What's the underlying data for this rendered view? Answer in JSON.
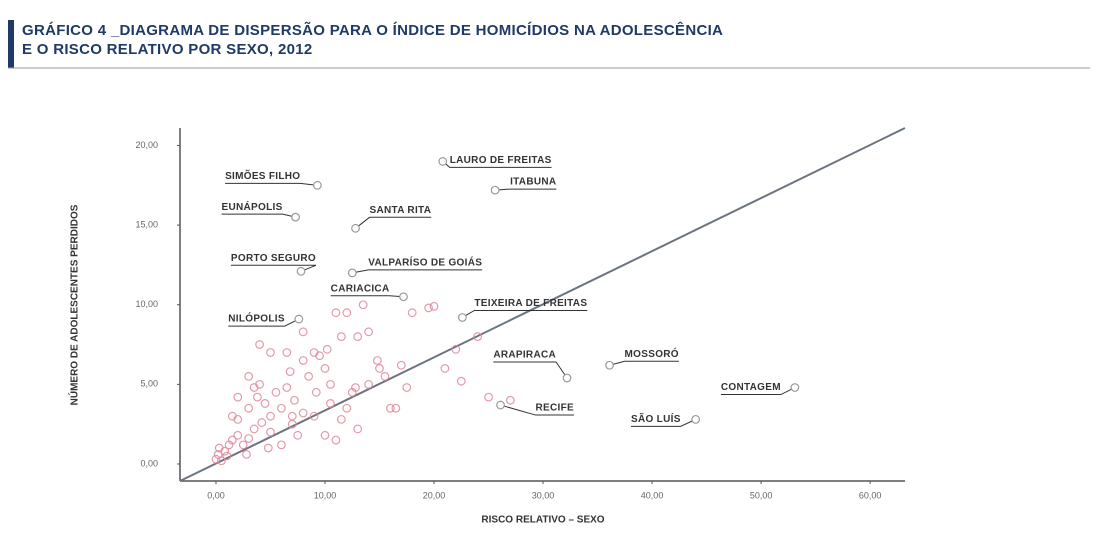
{
  "chart_data": {
    "type": "scatter",
    "title": [
      "GRÁFICO 4 _DIAGRAMA DE DISPERSÃO PARA O ÍNDICE DE HOMICÍDIOS NA ADOLESCÊNCIA",
      "E O RISCO RELATIVO POR SEXO, 2012"
    ],
    "x_label": "RISCO RELATIVO – SEXO",
    "y_label": "NÚMERO DE ADOLESCENTES PERDIDOS",
    "xlim": [
      -3.3,
      63.2
    ],
    "ylim": [
      -1.07,
      21.1
    ],
    "xticks": [
      {
        "value": 0,
        "label": "0,00"
      },
      {
        "value": 10,
        "label": "10,00"
      },
      {
        "value": 20,
        "label": "20,00"
      },
      {
        "value": 30,
        "label": "30,00"
      },
      {
        "value": 40,
        "label": "40,00"
      },
      {
        "value": 50,
        "label": "50,00"
      },
      {
        "value": 60,
        "label": "60,00"
      }
    ],
    "yticks": [
      {
        "value": 0,
        "label": "0,00"
      },
      {
        "value": 5,
        "label": "5,00"
      },
      {
        "value": 10,
        "label": "10,00"
      },
      {
        "value": 15,
        "label": "15,00"
      },
      {
        "value": 20,
        "label": "20,00"
      }
    ],
    "color": "#e0879a",
    "line_color": "#6b7580",
    "reference_line": {
      "x": [
        -3.3,
        63.2
      ],
      "y": [
        -1.07,
        21.1
      ]
    },
    "x": [
      0,
      0.2,
      0.5,
      0.3,
      1,
      1.2,
      0.8,
      1.5,
      2,
      2.5,
      2,
      3,
      3.5,
      3,
      3.8,
      4,
      4.5,
      4.2,
      5,
      5.5,
      5,
      6,
      6.5,
      6,
      7,
      7.2,
      7.5,
      8,
      8.5,
      8,
      9,
      9.5,
      10,
      10.5,
      10.2,
      9,
      10,
      11,
      11.5,
      12,
      12.5,
      13,
      14,
      15,
      15.5,
      16,
      17,
      17.5,
      18,
      19.5,
      20,
      21,
      22,
      22.5,
      24,
      25,
      27,
      4,
      5,
      3,
      2,
      1.5,
      6.5,
      8,
      11,
      11.5,
      12,
      13,
      13.5,
      14,
      7,
      6.8,
      3.5,
      4.8,
      2.8,
      9.2,
      10.5,
      16.5,
      12.8,
      14.8
    ],
    "y": [
      0.3,
      0.6,
      0.2,
      1.0,
      0.5,
      1.2,
      0.8,
      1.5,
      1.8,
      1.2,
      2.8,
      1.6,
      2.2,
      3.5,
      4.2,
      5,
      3.8,
      2.6,
      3,
      4.5,
      2,
      3.5,
      4.8,
      1.2,
      2.5,
      4,
      1.8,
      3.2,
      5.5,
      6.5,
      7,
      6.8,
      6,
      5,
      7.2,
      3,
      1.8,
      1.5,
      2.8,
      3.5,
      4.5,
      2.2,
      5,
      6,
      5.5,
      3.5,
      6.2,
      4.8,
      9.5,
      9.8,
      9.9,
      6,
      7.2,
      5.2,
      8,
      4.2,
      4,
      7.5,
      7,
      5.5,
      4.2,
      3,
      7,
      8.3,
      9.5,
      8,
      9.5,
      8,
      10,
      8.3,
      3,
      5.8,
      4.8,
      1,
      0.6,
      4.5,
      3.8,
      3.5,
      4.8,
      6.5
    ],
    "annotations": [
      {
        "text": "SIMÕES FILHO",
        "x": 9.3,
        "y": 17.5
      },
      {
        "text": "LAURO DE FREITAS",
        "x": 20.8,
        "y": 19.0
      },
      {
        "text": "ITABUNA",
        "x": 25.6,
        "y": 17.2
      },
      {
        "text": "EUNÁPOLIS",
        "x": 7.3,
        "y": 15.5
      },
      {
        "text": "SANTA RITA",
        "x": 12.8,
        "y": 14.8
      },
      {
        "text": "PORTO SEGURO",
        "x": 7.8,
        "y": 12.1
      },
      {
        "text": "VALPARÍSO DE GOIÁS",
        "x": 12.5,
        "y": 12.0
      },
      {
        "text": "CARIACICA",
        "x": 17.2,
        "y": 10.5
      },
      {
        "text": "TEIXEIRA DE FREITAS",
        "x": 22.6,
        "y": 9.2
      },
      {
        "text": "NILÓPOLIS",
        "x": 7.6,
        "y": 9.1
      },
      {
        "text": "ARAPIRACA",
        "x": 32.2,
        "y": 5.4
      },
      {
        "text": "MOSSORÓ",
        "x": 36.1,
        "y": 6.2
      },
      {
        "text": "CONTAGEM",
        "x": 53.1,
        "y": 4.8
      },
      {
        "text": "RECIFE",
        "x": 26.1,
        "y": 3.7
      },
      {
        "text": "SÃO LUÍS",
        "x": 44.0,
        "y": 2.8
      }
    ]
  }
}
